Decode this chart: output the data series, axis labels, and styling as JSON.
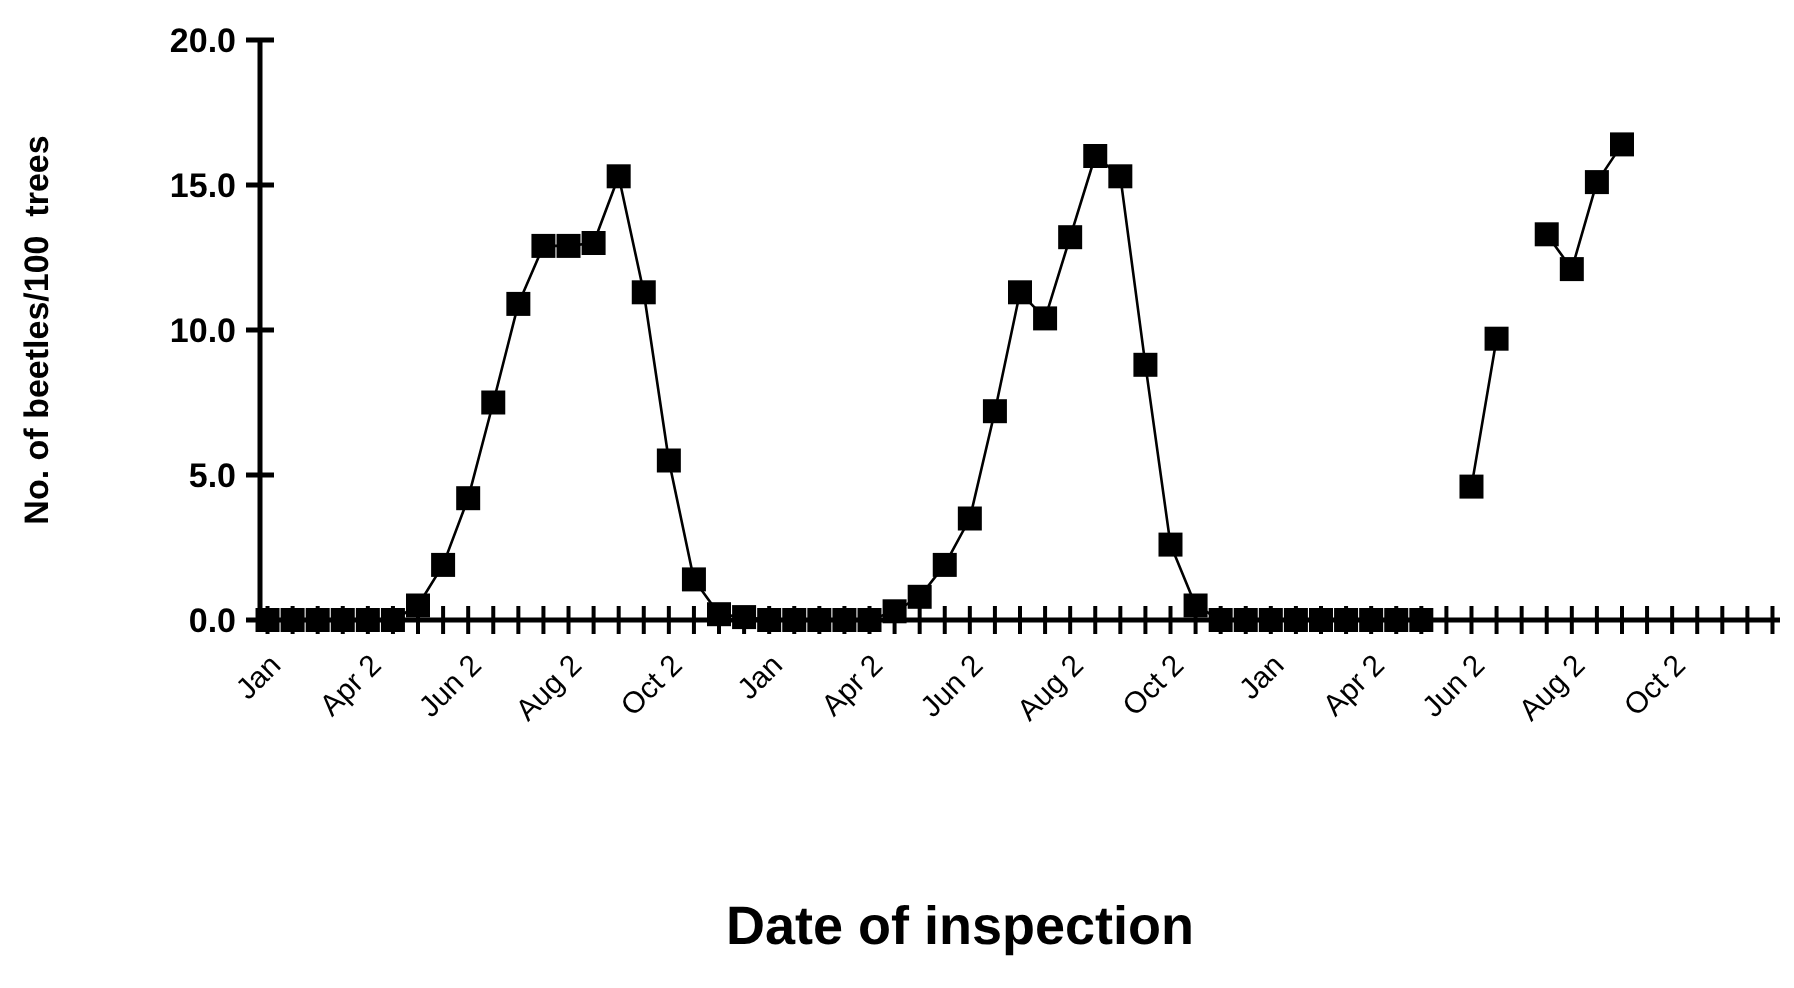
{
  "chart_data": {
    "type": "line",
    "xlabel": "Date of inspection",
    "ylabel": "No. of beetles/100  trees",
    "categories": [
      "Jan",
      null,
      null,
      null,
      "Apr 2",
      null,
      null,
      null,
      "Jun 2",
      null,
      null,
      null,
      "Aug 2",
      null,
      null,
      null,
      "Oct 2",
      null,
      null,
      null,
      "Jan",
      null,
      null,
      null,
      "Apr 2",
      null,
      null,
      null,
      "Jun 2",
      null,
      null,
      null,
      "Aug 2",
      null,
      null,
      null,
      "Oct 2",
      null,
      null,
      null,
      "Jan",
      null,
      null,
      null,
      "Apr 2",
      null,
      null,
      null,
      "Jun 2",
      null,
      null,
      null,
      "Aug 2",
      null,
      null,
      null,
      "Oct 2",
      null,
      null,
      null,
      null
    ],
    "series": [
      {
        "color": "#000000",
        "values": [
          0,
          0,
          0,
          0,
          0,
          0,
          0.5,
          1.9,
          4.2,
          7.5,
          10.9,
          12.9,
          12.9,
          13.0,
          15.3,
          11.3,
          5.5,
          1.4,
          0.2,
          0.1,
          0,
          0,
          0,
          0,
          0,
          0.3,
          0.8,
          1.9,
          3.5,
          7.2,
          11.3,
          10.4,
          13.2,
          16.0,
          15.3,
          8.8,
          2.6,
          0.5,
          0,
          0,
          0,
          0,
          0,
          0,
          0,
          0,
          0,
          null,
          4.6,
          9.7,
          null,
          13.3,
          12.1,
          15.1,
          16.4,
          null,
          null,
          null,
          null,
          null,
          null
        ]
      }
    ],
    "ylim": [
      0,
      20
    ],
    "yticks": [
      {
        "value": 0,
        "label": "0.0"
      },
      {
        "value": 5,
        "label": "5.0"
      },
      {
        "value": 10,
        "label": "10.0"
      },
      {
        "value": 15,
        "label": "15.0"
      },
      {
        "value": 20,
        "label": "20.0"
      }
    ],
    "grid": false,
    "marker": "square",
    "line_style": "solid"
  }
}
